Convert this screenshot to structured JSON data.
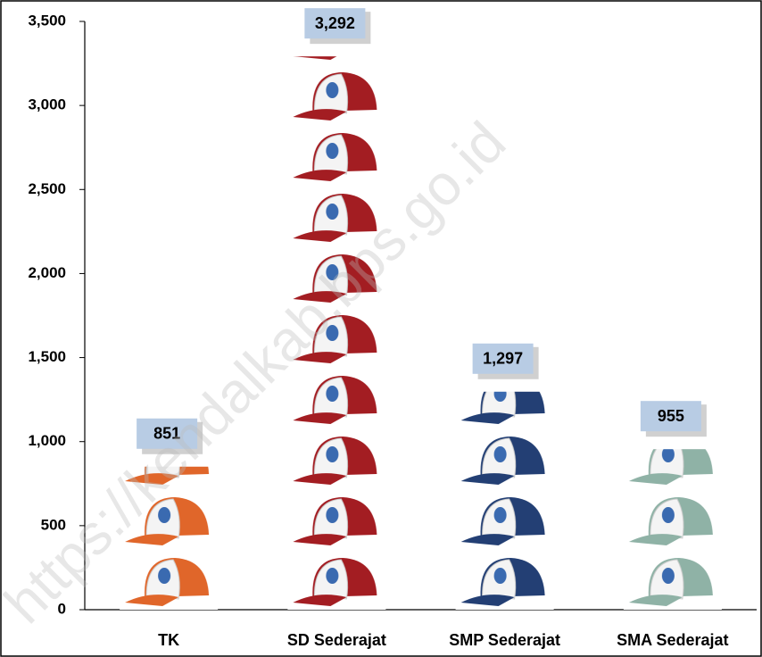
{
  "chart_data": {
    "type": "bar",
    "categories": [
      "TK",
      "SD Sederajat",
      "SMP Sederajat",
      "SMA Sederajat"
    ],
    "values": [
      851,
      3292,
      1297,
      955
    ],
    "value_labels": [
      "851",
      "3,292",
      "1,297",
      "955"
    ],
    "colors": [
      "#e0662a",
      "#a31d22",
      "#233f74",
      "#8fb2a6"
    ],
    "ylim": [
      0,
      3500
    ],
    "yticks": [
      0,
      500,
      {
        "value": 1000,
        "label": "1,000"
      },
      {
        "value": 1500,
        "label": "1,500"
      },
      {
        "value": 2000,
        "label": "2,000"
      },
      {
        "value": 2500,
        "label": "2,500"
      },
      {
        "value": 3000,
        "label": "3,000"
      },
      {
        "value": 3500,
        "label": "3,500"
      }
    ],
    "watermark": "https://kendalkab.bps.go.id"
  }
}
